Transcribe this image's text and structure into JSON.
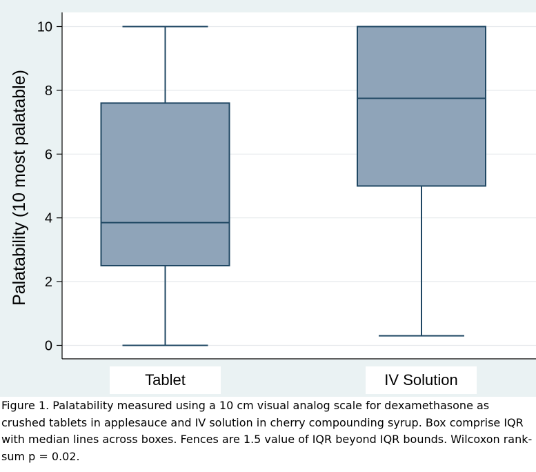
{
  "chart_data": {
    "type": "boxplot",
    "ylabel": "Palatability (10 most palatable)",
    "ylim": [
      0,
      10
    ],
    "yticks": [
      "0",
      "2",
      "4",
      "6",
      "8",
      "10"
    ],
    "grid": true,
    "categories": [
      "Tablet",
      "IV Solution"
    ],
    "boxes": [
      {
        "category": "Tablet",
        "whisker_low": 0,
        "q1": 2.5,
        "median": 3.85,
        "q3": 7.6,
        "whisker_high": 10
      },
      {
        "category": "IV Solution",
        "whisker_low": 0.3,
        "q1": 5.0,
        "median": 7.75,
        "q3": 10,
        "whisker_high": 10
      }
    ],
    "colors": {
      "box_fill": "#8fa4b9",
      "box_stroke": "#1f4763",
      "background": "#eaf2f3",
      "grid": "#ffffff"
    }
  },
  "caption": "Figure 1. Palatability measured  using a 10 cm visual analog scale for dexamethasone  as crushed tablets in applesauce and IV solution in cherry compounding syrup. Box comprise IQR with median lines across boxes. Fences are 1.5 value of IQR beyond IQR bounds. Wilcoxon rank-sum p = 0.02."
}
